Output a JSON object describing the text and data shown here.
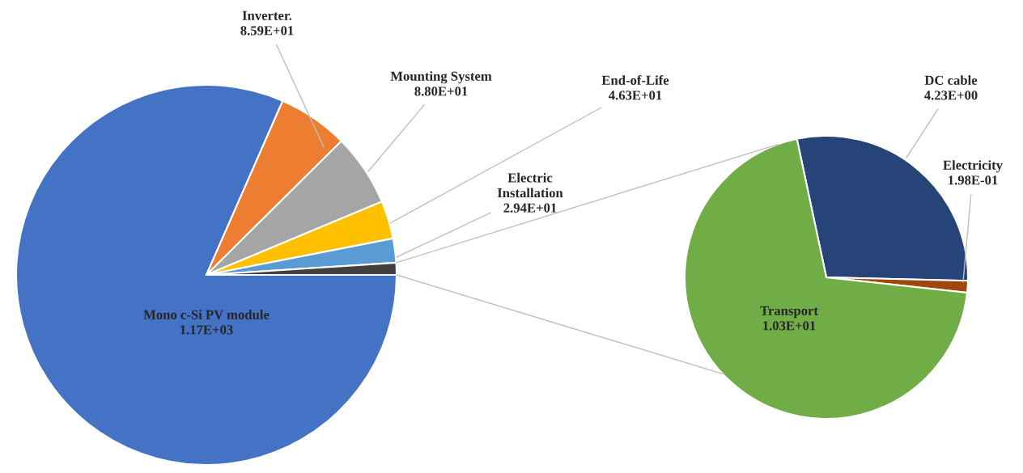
{
  "chart_data": [
    {
      "type": "pie",
      "categories": [
        "Mono c-Si PV module",
        "Inverter.",
        "Mounting System",
        "End-of-Life",
        "Electric Installation",
        null
      ],
      "values": [
        1170,
        85.9,
        88.0,
        46.3,
        29.4,
        14.7
      ],
      "value_labels": [
        "1.17E+03",
        "8.59E+01",
        "8.80E+01",
        "4.63E+01",
        "2.94E+01",
        null
      ],
      "colors": [
        "#4472c4",
        "#ed7d31",
        "#a5a5a5",
        "#ffc000",
        "#5b9bd5",
        "#404040"
      ]
    },
    {
      "type": "pie",
      "categories": [
        "DC cable",
        "Electricity",
        "Transport"
      ],
      "values": [
        4.23,
        0.198,
        10.3
      ],
      "value_labels": [
        "4.23E+00",
        "1.98E-01",
        "1.03E+01"
      ],
      "colors": [
        "#264478",
        "#9e480e",
        "#70ad47"
      ]
    }
  ]
}
